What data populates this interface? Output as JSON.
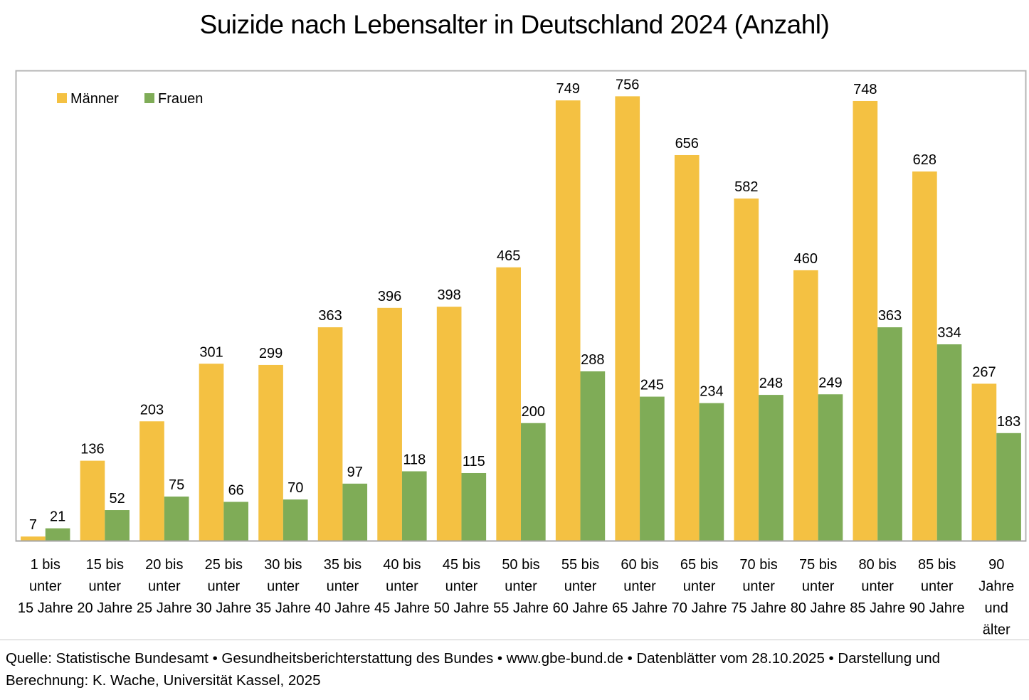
{
  "chart_data": {
    "type": "bar",
    "title": "Suizide nach Lebensalter in Deutschland 2024 (Anzahl)",
    "xlabel": "",
    "ylabel": "",
    "ylim": [
      0,
      800
    ],
    "grid": false,
    "legend_position": "top-left",
    "categories": [
      [
        "1  bis",
        "unter",
        "15 Jahre"
      ],
      [
        "15 bis",
        "unter",
        "20 Jahre"
      ],
      [
        "20 bis",
        "unter",
        "25 Jahre"
      ],
      [
        "25 bis",
        "unter",
        "30 Jahre"
      ],
      [
        "30 bis",
        "unter",
        "35 Jahre"
      ],
      [
        "35 bis",
        "unter",
        "40 Jahre"
      ],
      [
        "40 bis",
        "unter",
        "45 Jahre"
      ],
      [
        "45 bis",
        "unter",
        "50 Jahre"
      ],
      [
        "50 bis",
        "unter",
        "55 Jahre"
      ],
      [
        "55 bis",
        "unter",
        "60 Jahre"
      ],
      [
        "60 bis",
        "unter",
        "65 Jahre"
      ],
      [
        "65 bis",
        "unter",
        "70 Jahre"
      ],
      [
        "70 bis",
        "unter",
        "75 Jahre"
      ],
      [
        "75 bis",
        "unter",
        "80 Jahre"
      ],
      [
        "80 bis",
        "unter",
        "85 Jahre"
      ],
      [
        "85 bis",
        "unter",
        "90 Jahre"
      ],
      [
        "90",
        "Jahre",
        "und",
        "älter"
      ]
    ],
    "series": [
      {
        "name": "Männer",
        "color": "#F4C142",
        "values": [
          7,
          136,
          203,
          301,
          299,
          363,
          396,
          398,
          465,
          749,
          756,
          656,
          582,
          460,
          748,
          628,
          267
        ]
      },
      {
        "name": "Frauen",
        "color": "#7FAC57",
        "values": [
          21,
          52,
          75,
          66,
          70,
          97,
          118,
          115,
          200,
          288,
          245,
          234,
          248,
          249,
          363,
          334,
          183
        ]
      }
    ]
  },
  "footer": {
    "source": "Quelle: Statistische Bundesamt • Gesundheitsberichterstattung des Bundes • www.gbe-bund.de • Datenblätter vom 28.10.2025 • Darstellung und Berechnung: K. Wache, Universität Kassel, 2025"
  }
}
